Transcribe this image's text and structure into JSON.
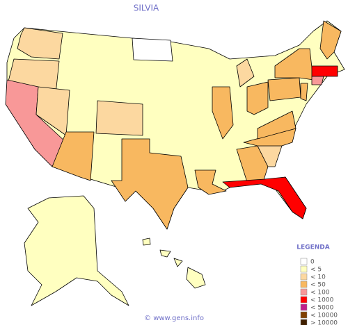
{
  "title": "SILVIA",
  "legend": {
    "title": "LEGENDA",
    "items": [
      {
        "label": "0",
        "color": "#ffffff"
      },
      {
        "label": "< 5",
        "color": "#ffffc0"
      },
      {
        "label": "< 10",
        "color": "#fcd8a0"
      },
      {
        "label": "< 50",
        "color": "#f8b860"
      },
      {
        "label": "< 100",
        "color": "#f89898"
      },
      {
        "label": "< 1000",
        "color": "#ff0000"
      },
      {
        "label": "< 5000",
        "color": "#c0208a"
      },
      {
        "label": "< 10000",
        "color": "#804000"
      },
      {
        "label": "> 10000",
        "color": "#402000"
      }
    ]
  },
  "footer": "© www.gens.info"
}
